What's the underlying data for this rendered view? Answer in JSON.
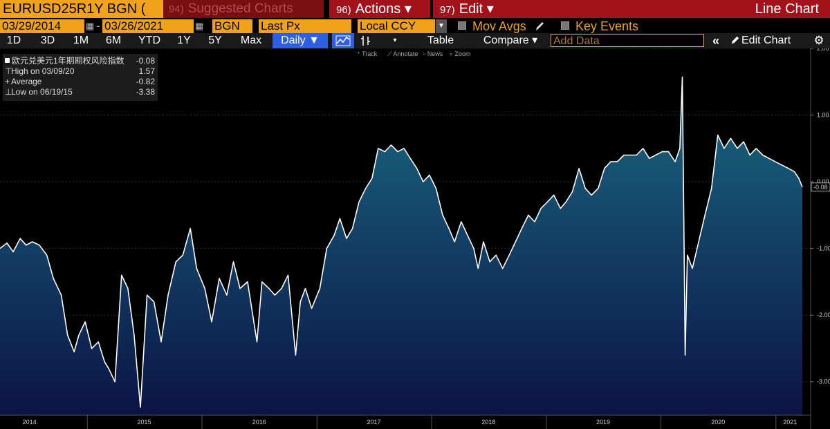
{
  "header": {
    "ticker": "EURUSD25R1Y BGN (",
    "suggested_num": "94)",
    "suggested_label": "Suggested Charts",
    "actions_num": "96)",
    "actions_label": "Actions ▾",
    "edit_num": "97)",
    "edit_label": "Edit ▾",
    "view_title": "Line Chart"
  },
  "controls": {
    "start_date": "03/29/2014",
    "dash": "-",
    "end_date": "03/26/2021",
    "source": "BGN",
    "field": "Last Px",
    "currency": "Local CCY",
    "mov_avgs": "Mov Avgs",
    "key_events": "Key Events"
  },
  "toolbar": {
    "ranges": [
      "1D",
      "3D",
      "1M",
      "6M",
      "YTD",
      "1Y",
      "5Y",
      "Max"
    ],
    "period": "Daily ▼",
    "table": "Table",
    "compare": "Compare ▾",
    "add_data_placeholder": "Add Data",
    "collapse": "«",
    "edit_chart": "Edit Chart"
  },
  "subtoolbar": {
    "track": "Track",
    "annotate": "Annotate",
    "news": "News",
    "zoom": "Zoom"
  },
  "legend": {
    "series_name": "欧元兑美元1年期期权风险指数",
    "last_value": "-0.08",
    "high_label": "High on 03/09/20",
    "high_value": "1.57",
    "avg_label": "Average",
    "avg_value": "-0.82",
    "low_label": "Low on 06/19/15",
    "low_value": "-3.38"
  },
  "icons": {
    "calendar": "calendar-icon",
    "line_type": "line-chart-icon",
    "bar_type": "candlestick-icon",
    "pencil": "pencil-icon",
    "gear": "gear-icon"
  },
  "colors": {
    "accent_orange": "#f0a21a",
    "menu_red": "#a3111a",
    "active_blue": "#2d5fe0",
    "area_top": "#1a6a80",
    "area_bottom": "#0b1446"
  },
  "chart_data": {
    "type": "area",
    "ylim": [
      -3.5,
      2.0
    ],
    "yticks": [
      "2.00",
      "1.00",
      "0.00",
      "-1.00",
      "-2.00",
      "-3.00"
    ],
    "ytick_values": [
      2,
      1,
      0,
      -1,
      -2,
      -3
    ],
    "last_value_label": "-0.08",
    "xticks": [
      "2014",
      "2015",
      "2016",
      "2017",
      "2018",
      "2019",
      "2020",
      "2021"
    ],
    "xtick_dates": [
      "2014-07-01",
      "2015-07-01",
      "2016-07-01",
      "2017-07-01",
      "2018-07-01",
      "2019-07-01",
      "2020-07-01",
      "2021-02-15"
    ],
    "xlim": [
      "2014-03-29",
      "2021-03-26"
    ],
    "x": [
      "2014-03-29",
      "2014-04-20",
      "2014-05-10",
      "2014-06-01",
      "2014-06-20",
      "2014-07-10",
      "2014-08-01",
      "2014-08-25",
      "2014-09-15",
      "2014-10-10",
      "2014-10-30",
      "2014-11-20",
      "2014-12-05",
      "2014-12-25",
      "2015-01-15",
      "2015-02-05",
      "2015-02-25",
      "2015-03-10",
      "2015-03-30",
      "2015-04-20",
      "2015-05-10",
      "2015-05-30",
      "2015-06-19",
      "2015-07-10",
      "2015-08-01",
      "2015-08-24",
      "2015-09-15",
      "2015-10-10",
      "2015-11-01",
      "2015-11-25",
      "2015-12-15",
      "2016-01-10",
      "2016-02-01",
      "2016-02-25",
      "2016-03-20",
      "2016-04-10",
      "2016-05-01",
      "2016-05-25",
      "2016-06-24",
      "2016-07-10",
      "2016-08-01",
      "2016-08-20",
      "2016-09-10",
      "2016-10-01",
      "2016-10-25",
      "2016-11-09",
      "2016-11-25",
      "2016-12-15",
      "2017-01-10",
      "2017-02-01",
      "2017-02-25",
      "2017-03-15",
      "2017-04-05",
      "2017-04-24",
      "2017-05-15",
      "2017-06-05",
      "2017-06-25",
      "2017-07-15",
      "2017-08-05",
      "2017-08-25",
      "2017-09-15",
      "2017-10-05",
      "2017-10-25",
      "2017-11-15",
      "2017-12-05",
      "2017-12-25",
      "2018-01-15",
      "2018-02-05",
      "2018-02-25",
      "2018-03-15",
      "2018-04-05",
      "2018-04-25",
      "2018-05-15",
      "2018-05-29",
      "2018-06-15",
      "2018-07-05",
      "2018-07-25",
      "2018-08-15",
      "2018-09-05",
      "2018-09-25",
      "2018-10-15",
      "2018-11-05",
      "2018-11-25",
      "2018-12-15",
      "2019-01-05",
      "2019-01-25",
      "2019-02-15",
      "2019-03-05",
      "2019-03-25",
      "2019-04-15",
      "2019-05-05",
      "2019-05-25",
      "2019-06-15",
      "2019-07-05",
      "2019-07-25",
      "2019-08-15",
      "2019-09-05",
      "2019-09-25",
      "2019-10-15",
      "2019-11-05",
      "2019-11-25",
      "2019-12-15",
      "2020-01-05",
      "2020-01-25",
      "2020-02-15",
      "2020-03-01",
      "2020-03-09",
      "2020-03-13",
      "2020-03-18",
      "2020-03-25",
      "2020-04-10",
      "2020-04-30",
      "2020-05-20",
      "2020-06-10",
      "2020-06-30",
      "2020-07-20",
      "2020-08-10",
      "2020-08-31",
      "2020-09-20",
      "2020-10-10",
      "2020-10-30",
      "2020-11-20",
      "2020-12-10",
      "2020-12-30",
      "2021-01-20",
      "2021-02-10",
      "2021-03-01",
      "2021-03-15",
      "2021-03-26"
    ],
    "y": [
      -1.0,
      -0.92,
      -1.05,
      -0.85,
      -0.95,
      -0.9,
      -0.95,
      -1.1,
      -1.45,
      -1.7,
      -2.3,
      -2.55,
      -2.3,
      -2.1,
      -2.5,
      -2.4,
      -2.7,
      -2.8,
      -3.0,
      -1.4,
      -1.6,
      -2.3,
      -3.38,
      -1.7,
      -1.8,
      -2.4,
      -1.7,
      -1.2,
      -1.1,
      -0.7,
      -1.3,
      -1.6,
      -2.1,
      -1.45,
      -1.7,
      -1.2,
      -1.6,
      -1.5,
      -2.4,
      -1.5,
      -1.6,
      -1.7,
      -1.6,
      -1.4,
      -2.6,
      -1.8,
      -1.6,
      -1.9,
      -1.6,
      -1.0,
      -0.8,
      -0.55,
      -0.85,
      -0.7,
      -0.3,
      -0.1,
      0.05,
      0.5,
      0.45,
      0.55,
      0.45,
      0.5,
      0.35,
      0.2,
      0.0,
      0.1,
      -0.1,
      -0.5,
      -0.7,
      -0.9,
      -0.6,
      -0.8,
      -1.0,
      -1.3,
      -0.9,
      -1.2,
      -1.1,
      -1.3,
      -1.1,
      -0.9,
      -0.7,
      -0.5,
      -0.6,
      -0.4,
      -0.3,
      -0.2,
      -0.4,
      -0.3,
      -0.15,
      0.2,
      -0.1,
      -0.2,
      -0.1,
      0.2,
      0.3,
      0.3,
      0.4,
      0.4,
      0.4,
      0.5,
      0.35,
      0.4,
      0.45,
      0.45,
      0.3,
      0.5,
      1.57,
      -0.2,
      -2.6,
      -1.1,
      -1.3,
      -0.9,
      -0.5,
      -0.1,
      0.7,
      0.5,
      0.65,
      0.5,
      0.6,
      0.4,
      0.5,
      0.4,
      0.35,
      0.3,
      0.25,
      0.2,
      0.15,
      0.05,
      -0.08
    ]
  }
}
